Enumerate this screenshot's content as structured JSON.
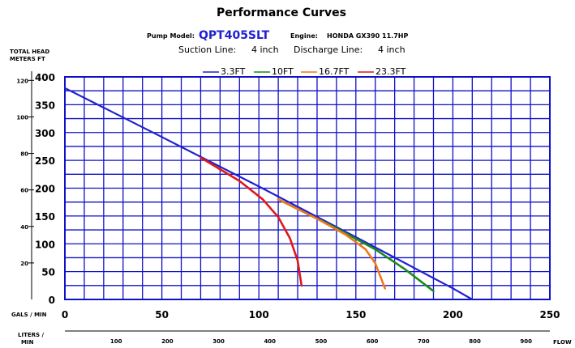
{
  "header": {
    "title": "Performance Curves",
    "pump_model_label": "Pump Model:",
    "pump_model": "QPT405SLT",
    "engine_label": "Engine:",
    "engine": "HONDA  GX390  11.7HP",
    "suction_label": "Suction  Line:",
    "suction": "4 inch",
    "discharge_label": "Discharge  Line:",
    "discharge": "4 inch"
  },
  "colors": {
    "grid": "#1010c8",
    "accent": "#2020d0"
  },
  "chart_data": {
    "type": "line",
    "title": "Performance Curves",
    "ylabel_left": "TOTAL HEAD",
    "ylabel_units": "METERS  FT",
    "xlabel_primary": "GALS /  MIN",
    "xlabel_secondary": "LITERS / MIN",
    "xlabel_right": "FLOW",
    "xlim": [
      0,
      250
    ],
    "ylim": [
      0,
      400
    ],
    "x_ticks": [
      0,
      50,
      100,
      150,
      200,
      250
    ],
    "y_ticks_ft": [
      0,
      50,
      100,
      150,
      200,
      250,
      300,
      350,
      400
    ],
    "y_ticks_m": [
      20,
      40,
      60,
      80,
      100,
      120
    ],
    "x_ticks_liters": [
      100,
      200,
      300,
      400,
      500,
      600,
      700,
      800,
      900
    ],
    "grid": true,
    "legend_position": "top",
    "series": [
      {
        "name": "3.3FT",
        "color": "#2020d0",
        "x": [
          0,
          50,
          100,
          150,
          175,
          200,
          210
        ],
        "y": [
          380,
          292,
          203,
          112,
          66,
          20,
          0
        ]
      },
      {
        "name": "10FT",
        "color": "#1a8c1a",
        "x": [
          110,
          140,
          160,
          175,
          190
        ],
        "y": [
          180,
          128,
          90,
          55,
          15
        ]
      },
      {
        "name": "16.7FT",
        "color": "#f07818",
        "x": [
          110,
          130,
          145,
          155,
          160,
          165
        ],
        "y": [
          180,
          145,
          116,
          90,
          65,
          20
        ]
      },
      {
        "name": "23.3FT",
        "color": "#e01818",
        "x": [
          70,
          90,
          102,
          110,
          116,
          120,
          122
        ],
        "y": [
          255,
          213,
          180,
          148,
          110,
          70,
          25
        ]
      }
    ]
  }
}
